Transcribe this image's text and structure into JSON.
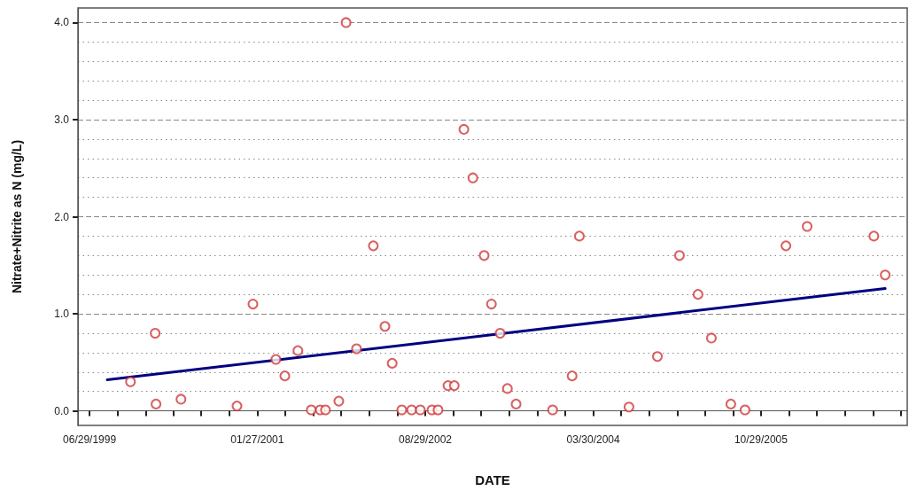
{
  "chart_data": {
    "type": "scatter",
    "xlabel": "DATE",
    "ylabel": "Nitrate+Nitrite as N (mg/L)",
    "xlim": [
      "1999-05-20",
      "2007-03-17"
    ],
    "xticks": [
      {
        "value": "1999-06-29",
        "label": "06/29/1999"
      },
      {
        "value": "1999-10-03",
        "label": null
      },
      {
        "value": "2000-01-08",
        "label": null
      },
      {
        "value": "2000-04-13",
        "label": null
      },
      {
        "value": "2000-07-18",
        "label": null
      },
      {
        "value": "2000-10-22",
        "label": null
      },
      {
        "value": "2001-01-27",
        "label": "01/27/2001"
      },
      {
        "value": "2001-05-03",
        "label": null
      },
      {
        "value": "2001-08-08",
        "label": null
      },
      {
        "value": "2001-11-12",
        "label": null
      },
      {
        "value": "2002-02-17",
        "label": null
      },
      {
        "value": "2002-05-24",
        "label": null
      },
      {
        "value": "2002-08-29",
        "label": "08/29/2002"
      },
      {
        "value": "2002-12-03",
        "label": null
      },
      {
        "value": "2003-03-10",
        "label": null
      },
      {
        "value": "2003-06-14",
        "label": null
      },
      {
        "value": "2003-09-19",
        "label": null
      },
      {
        "value": "2003-12-24",
        "label": null
      },
      {
        "value": "2004-03-30",
        "label": "03/30/2004"
      },
      {
        "value": "2004-07-04",
        "label": null
      },
      {
        "value": "2004-10-09",
        "label": null
      },
      {
        "value": "2005-01-13",
        "label": null
      },
      {
        "value": "2005-04-20",
        "label": null
      },
      {
        "value": "2005-07-25",
        "label": null
      },
      {
        "value": "2005-10-29",
        "label": "10/29/2005"
      },
      {
        "value": "2006-02-02",
        "label": null
      },
      {
        "value": "2006-05-10",
        "label": null
      },
      {
        "value": "2006-08-14",
        "label": null
      },
      {
        "value": "2006-11-19",
        "label": null
      },
      {
        "value": "2007-02-23",
        "label": null
      }
    ],
    "ylim": [
      -0.15,
      4.15
    ],
    "yticks": [
      {
        "value": 0,
        "label": "0.0"
      },
      {
        "value": 0.2,
        "label": null
      },
      {
        "value": 0.4,
        "label": null
      },
      {
        "value": 0.6,
        "label": null
      },
      {
        "value": 0.8,
        "label": null
      },
      {
        "value": 1,
        "label": "1.0"
      },
      {
        "value": 1.2,
        "label": null
      },
      {
        "value": 1.4,
        "label": null
      },
      {
        "value": 1.6,
        "label": null
      },
      {
        "value": 1.8,
        "label": null
      },
      {
        "value": 2,
        "label": "2.0"
      },
      {
        "value": 2.2,
        "label": null
      },
      {
        "value": 2.4,
        "label": null
      },
      {
        "value": 2.6,
        "label": null
      },
      {
        "value": 2.8,
        "label": null
      },
      {
        "value": 3,
        "label": "3.0"
      },
      {
        "value": 3.2,
        "label": null
      },
      {
        "value": 3.4,
        "label": null
      },
      {
        "value": 3.6,
        "label": null
      },
      {
        "value": 3.8,
        "label": null
      },
      {
        "value": 4,
        "label": "4.0"
      }
    ],
    "grid": "y",
    "marker": "circle",
    "series": [
      {
        "color": "#d03a3a",
        "x": [
          "1999-11-17",
          "2000-02-10",
          "2000-02-13",
          "2000-05-09",
          "2000-11-18",
          "2001-01-12",
          "2001-04-01",
          "2001-05-02",
          "2001-06-16",
          "2001-08-01",
          "2001-09-01",
          "2001-09-19",
          "2001-11-04",
          "2001-11-29",
          "2002-01-04",
          "2002-03-03",
          "2002-04-12",
          "2002-05-07",
          "2002-06-09",
          "2002-07-13",
          "2002-08-12",
          "2002-09-21",
          "2002-10-12",
          "2002-11-15",
          "2002-12-07",
          "2003-01-09",
          "2003-02-09",
          "2003-03-20",
          "2003-04-14",
          "2003-05-14",
          "2003-06-08",
          "2003-07-08",
          "2003-11-11",
          "2004-01-17",
          "2004-02-11",
          "2004-07-31",
          "2004-11-06",
          "2005-01-21",
          "2005-03-26",
          "2005-05-11",
          "2005-07-17",
          "2005-09-04",
          "2006-01-23",
          "2006-04-06",
          "2006-11-22",
          "2006-12-31"
        ],
        "values": [
          0.3,
          0.8,
          0.07,
          0.12,
          0.05,
          1.1,
          0.53,
          0.36,
          0.62,
          0.01,
          0.01,
          0.01,
          0.1,
          4.0,
          0.64,
          1.7,
          0.87,
          0.49,
          0.01,
          0.01,
          0.01,
          0.01,
          0.01,
          0.26,
          0.26,
          2.9,
          2.4,
          1.6,
          1.1,
          0.8,
          0.23,
          0.07,
          0.01,
          0.36,
          1.8,
          0.04,
          0.56,
          1.6,
          1.2,
          0.75,
          0.07,
          0.01,
          1.7,
          1.9,
          1.8,
          1.4
        ]
      },
      {
        "type": "line",
        "color": "#000080",
        "marker": "none",
        "line_style": "solid",
        "x": [
          "1999-08-29",
          "2006-12-31"
        ],
        "values": [
          0.32,
          1.26
        ]
      }
    ]
  }
}
